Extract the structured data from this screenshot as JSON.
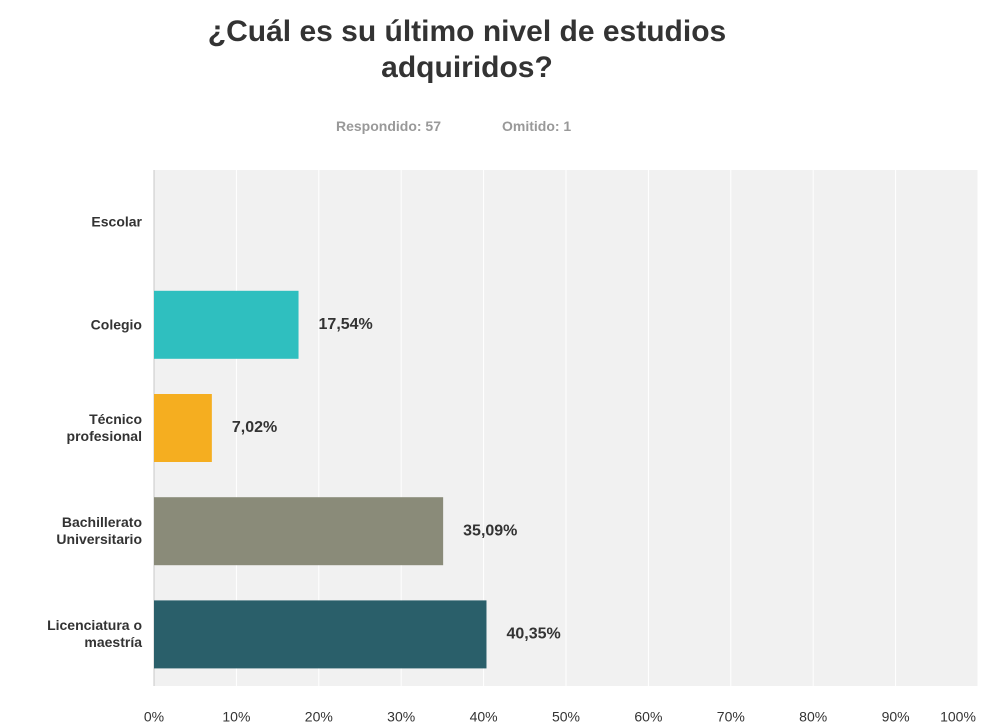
{
  "chart_data": {
    "type": "hbar",
    "title": "¿Cuál es su último nivel de estudios adquiridos?",
    "subtitle": [
      "Respondido: 57",
      "Omitido: 1"
    ],
    "categories": [
      "Escolar",
      "Colegio",
      "Técnico\nprofesional",
      "Bachillerato\nUniversitario",
      "Licenciatura o\nmaestría"
    ],
    "values": [
      0,
      17.54,
      7.02,
      35.09,
      40.35
    ],
    "value_labels": [
      null,
      "17,54%",
      "7,02%",
      "35,09%",
      "40,35%"
    ],
    "colors": [
      "#2fbfbf",
      "#2fbfbf",
      "#f5ae20",
      "#8a8b79",
      "#2a5f6a"
    ],
    "xlim": [
      0,
      100
    ],
    "xticks": [
      {
        "value": 0,
        "label": "0%"
      },
      {
        "value": 10,
        "label": "10%"
      },
      {
        "value": 20,
        "label": "20%"
      },
      {
        "value": 30,
        "label": "30%"
      },
      {
        "value": 40,
        "label": "40%"
      },
      {
        "value": 50,
        "label": "50%"
      },
      {
        "value": 60,
        "label": "60%"
      },
      {
        "value": 70,
        "label": "70%"
      },
      {
        "value": 80,
        "label": "80%"
      },
      {
        "value": 90,
        "label": "90%"
      },
      {
        "value": 100,
        "label": "100%"
      }
    ],
    "grid": true
  }
}
